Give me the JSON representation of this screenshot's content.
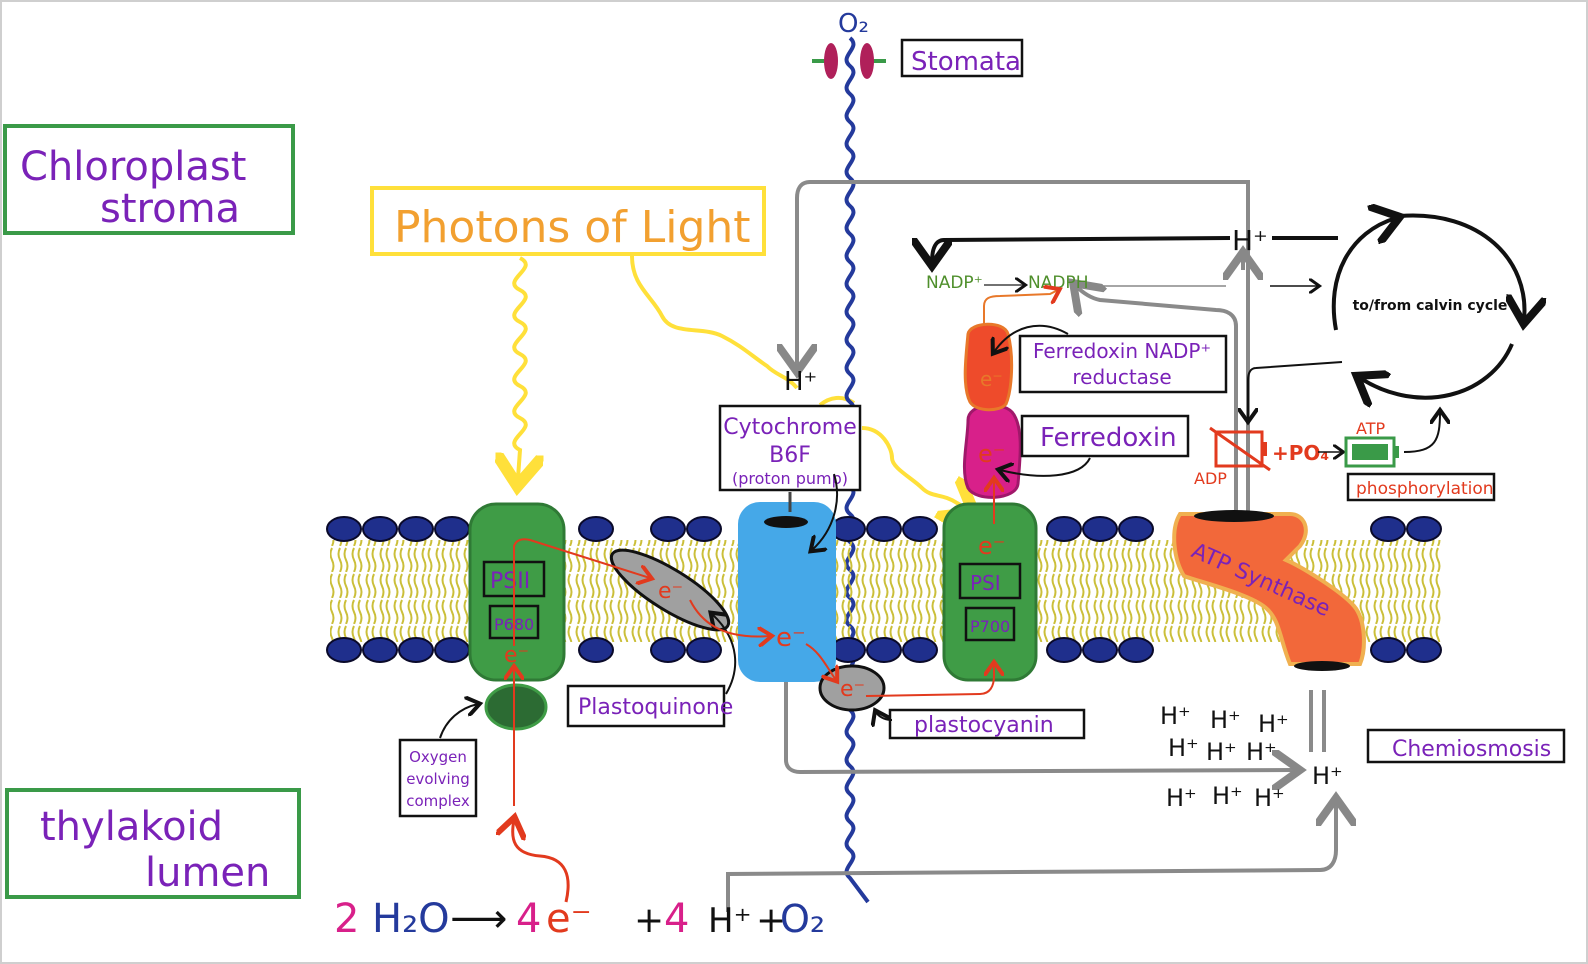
{
  "labels": {
    "stroma": [
      "Chloroplast",
      "stroma"
    ],
    "lumen": [
      "thylakoid",
      "lumen"
    ],
    "photons": "Photons of Light",
    "o2_top": "O₂",
    "stomata": "Stomata",
    "cytochrome": [
      "Cytochrome",
      "B6F",
      "(proton pump)"
    ],
    "nadp": "NADP⁺",
    "nadph": "NADPH",
    "fnr": [
      "Ferredoxin NADP⁺",
      "reductase"
    ],
    "ferredoxin": "Ferredoxin",
    "calvin": "to/from calvin cycle",
    "atp": "ATP",
    "adp": "ADP",
    "pi": "+PO₄",
    "phosphorylation": "phosphorylation",
    "atp_synthase": "ATP Synthase",
    "psii": "PSII",
    "p680": "P680",
    "psi": "PSI",
    "p700": "P700",
    "plastoquinone": "Plastoquinone",
    "plastocyanin": "plastocyanin",
    "oec": [
      "Oxygen",
      "evolving",
      "complex"
    ],
    "chemiosmosis": "Chemiosmosis",
    "electron": "e⁻",
    "proton": "H⁺",
    "equation": {
      "coef1": "2",
      "water": "H₂O",
      "arrow": "⟶",
      "coef2": "4",
      "e": "e⁻",
      "plus1": "+",
      "coef3": "4",
      "h": "H⁺",
      "plus2": "+",
      "o2": "O₂"
    }
  },
  "colors": {
    "purple": "#7a22b8",
    "green_box": "#3a9a48",
    "yellow": "#ffe03a",
    "orange_text": "#f2a030",
    "psgreen": "#3f9c46",
    "cyt_blue": "#45a8e8",
    "membrane_blue": "#1f2f8c",
    "red": "#e23a1e",
    "magenta": "#d8208a",
    "atp_orange": "#f2683a",
    "gray": "#8a8a8a"
  }
}
